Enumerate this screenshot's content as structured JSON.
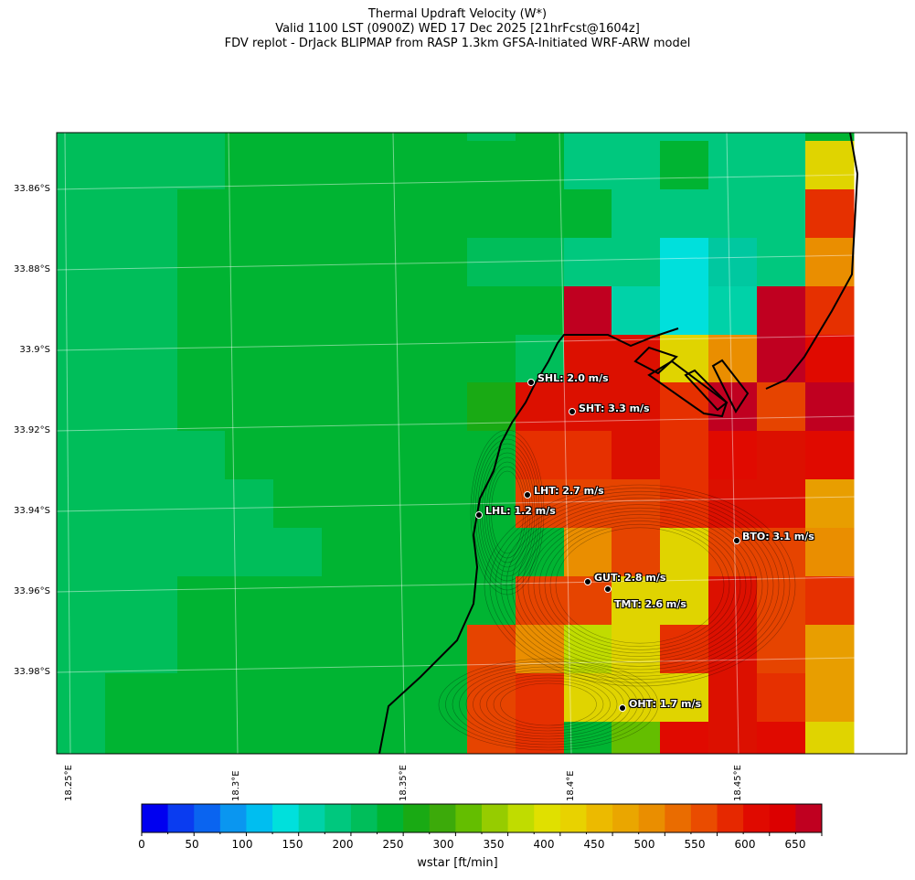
{
  "title": {
    "line1": "Thermal Updraft Velocity (W*)",
    "line2": "Valid 1100 LST (0900Z) WED 17 Dec 2025 [21hrFcst@1604z]",
    "line3": "FDV replot - DrJack BLIPMAP from RASP 1.3km GFSA-Initiated WRF-ARW model"
  },
  "lat_labels": [
    "33.86°S",
    "33.88°S",
    "33.9°S",
    "33.92°S",
    "33.94°S",
    "33.96°S",
    "33.98°S"
  ],
  "lon_labels": [
    "18.25°E",
    "18.3°E",
    "18.35°E",
    "18.4°E",
    "18.45°E"
  ],
  "stations": [
    {
      "code": "SHL",
      "label": "SHL: 2.0 m/s"
    },
    {
      "code": "SHT",
      "label": "SHT: 3.3 m/s"
    },
    {
      "code": "LHT",
      "label": "LHT: 2.7 m/s"
    },
    {
      "code": "LHL",
      "label": "LHL: 1.2 m/s"
    },
    {
      "code": "BTO",
      "label": "BTO: 3.1 m/s"
    },
    {
      "code": "GUT",
      "label": "GUT: 2.8 m/s"
    },
    {
      "code": "TMT",
      "label": "TMT: 2.6 m/s"
    },
    {
      "code": "OHT",
      "label": "OHT: 1.7 m/s"
    }
  ],
  "colorbar": {
    "label": "wstar [ft/min]",
    "ticks": [
      "0",
      "50",
      "100",
      "150",
      "200",
      "250",
      "300",
      "350",
      "400",
      "450",
      "500",
      "550",
      "600",
      "650"
    ],
    "colors": [
      "#0000f0",
      "#0a3cf0",
      "#0a64f0",
      "#0a96f0",
      "#00bef0",
      "#00e0dc",
      "#00d2a8",
      "#00c87e",
      "#00be5a",
      "#00b432",
      "#19aa14",
      "#3caa0a",
      "#64be00",
      "#96cc00",
      "#c0dc00",
      "#e0e000",
      "#e8d200",
      "#ecba00",
      "#eaa600",
      "#ea8e00",
      "#ea6c00",
      "#ea4c00",
      "#e62800",
      "#e00a00",
      "#dc0000",
      "#c00020"
    ]
  },
  "legend_palette_ft_min": {
    "teal_light": "#00e0dc",
    "green": "#00b432",
    "mid_green": "#00be5a",
    "yellow": "#e8d200",
    "orange": "#ea8e00",
    "red": "#dc0000",
    "crimson": "#c00020"
  }
}
